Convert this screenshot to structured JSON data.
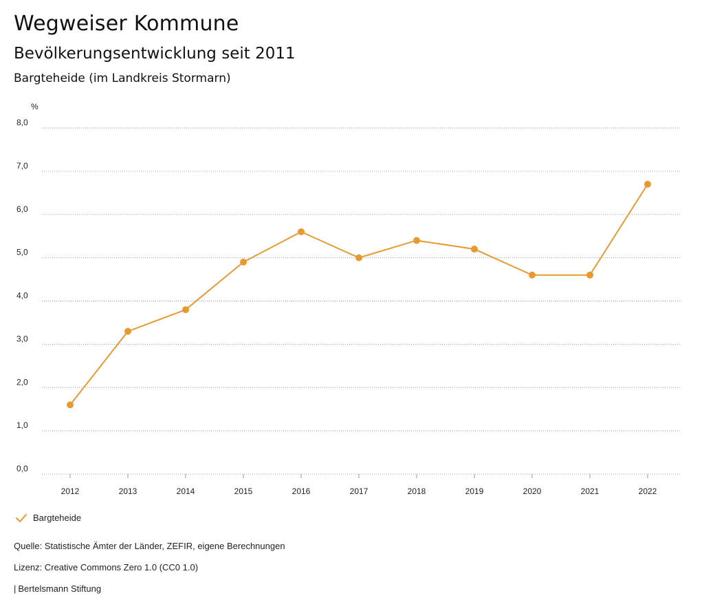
{
  "header": {
    "title": "Wegweiser Kommune",
    "subtitle": "Bevölkerungsentwicklung seit 2011",
    "place": "Bargteheide (im Landkreis Stormarn)"
  },
  "colors": {
    "series": "#E8992F",
    "grid": "#9a9a9a",
    "text": "#222222"
  },
  "chart_data": {
    "type": "line",
    "title": "Bevölkerungsentwicklung seit 2011",
    "ylabel": "%",
    "xlabel": "",
    "ylim": [
      0,
      8
    ],
    "yticks": [
      {
        "value": 0,
        "label": "0,0"
      },
      {
        "value": 1,
        "label": "1,0"
      },
      {
        "value": 2,
        "label": "2,0"
      },
      {
        "value": 3,
        "label": "3,0"
      },
      {
        "value": 4,
        "label": "4,0"
      },
      {
        "value": 5,
        "label": "5,0"
      },
      {
        "value": 6,
        "label": "6,0"
      },
      {
        "value": 7,
        "label": "7,0"
      },
      {
        "value": 8,
        "label": "8,0"
      }
    ],
    "categories": [
      "2012",
      "2013",
      "2014",
      "2015",
      "2016",
      "2017",
      "2018",
      "2019",
      "2020",
      "2021",
      "2022"
    ],
    "series": [
      {
        "name": "Bargteheide",
        "values": [
          1.6,
          3.3,
          3.8,
          4.9,
          5.6,
          5.0,
          5.4,
          5.2,
          4.6,
          4.6,
          6.7
        ]
      }
    ],
    "grid": true,
    "legend": "bottom-left"
  },
  "legend": {
    "label": "Bargteheide",
    "icon": "check-icon"
  },
  "footer": {
    "source": "Quelle: Statistische Ämter der Länder, ZEFIR, eigene Berechnungen",
    "license": "Lizenz: Creative Commons Zero 1.0 (CC0 1.0)",
    "separator": "|",
    "organization": "Bertelsmann Stiftung"
  }
}
